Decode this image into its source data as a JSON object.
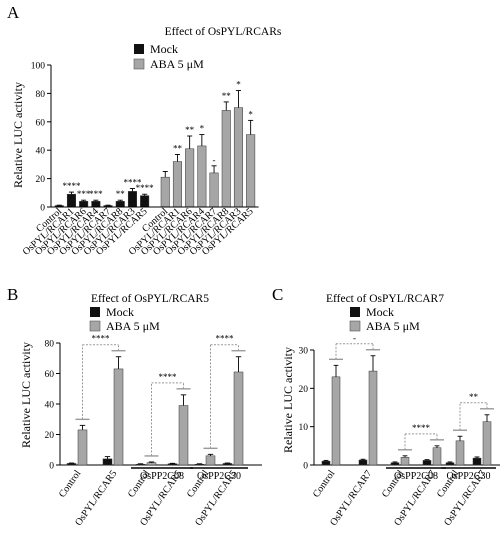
{
  "panels": [
    {
      "letter": "A",
      "title": "Effect of OsPYL/RCARs",
      "chart_data": {
        "type": "bar",
        "ylabel": "Relative LUC activity",
        "ylim": [
          0,
          100
        ],
        "yticks": [
          0,
          20,
          40,
          60,
          80,
          100
        ],
        "legend": [
          "Mock",
          "ABA 5 μM"
        ],
        "legend_placement": "top-left",
        "series": [
          {
            "name": "Mock",
            "color": "#111111",
            "categories": [
              "Control",
              "OsPYL/RCAR1",
              "OsPYL/RCAR6",
              "OsPYL/RCAR4",
              "OsPYL/RCAR7",
              "OsPYL/RCAR8",
              "OsPYL/RCAR3",
              "OsPYL/RCAR5"
            ],
            "values": [
              1,
              9,
              4,
              4,
              1,
              4,
              11,
              8
            ],
            "errors": [
              0.3,
              1.5,
              0.8,
              0.8,
              0.3,
              0.8,
              2,
              1
            ],
            "significance": [
              "",
              "****",
              "***",
              "***",
              "",
              "**",
              "****",
              "****"
            ]
          },
          {
            "name": "ABA 5 μM",
            "color": "#a6a6a6",
            "categories": [
              "Control",
              "OsPYL/RCAR1",
              "OsPYL/RCAR6",
              "OsPYL/RCAR4",
              "OsPYL/RCAR7",
              "OsPYL/RCAR8",
              "OsPYL/RCAR3",
              "OsPYL/RCAR5"
            ],
            "values": [
              21,
              32,
              41,
              43,
              24,
              68,
              70,
              51
            ],
            "errors": [
              4,
              5,
              9,
              8,
              5,
              6,
              12,
              10
            ],
            "significance": [
              "",
              "**",
              "**",
              "*",
              "-",
              "**",
              "*",
              "*"
            ]
          }
        ]
      }
    },
    {
      "letter": "B",
      "title": "Effect of  OsPYL/RCAR5",
      "chart_data": {
        "type": "bar",
        "ylabel": "Relative LUC activity",
        "ylim": [
          0,
          80
        ],
        "yticks": [
          0,
          20,
          40,
          60,
          80
        ],
        "legend": [
          "Mock",
          "ABA 5 μM"
        ],
        "legend_placement": "top-left",
        "categories": [
          "Control",
          "OsPYL/RCAR5",
          "Control",
          "OsPYL/RCAR5",
          "Control",
          "OsPYL/RCAR5"
        ],
        "groups": [
          "",
          "OsPP2C08",
          "OsPP2C30"
        ],
        "series": [
          {
            "name": "Mock",
            "color": "#111111",
            "values": [
              1,
              4,
              0.5,
              0.8,
              0.5,
              1
            ],
            "errors": [
              0.3,
              1.5,
              0.3,
              0.3,
              0.3,
              0.3
            ]
          },
          {
            "name": "ABA 5 μM",
            "color": "#a6a6a6",
            "values": [
              23,
              63,
              1.5,
              39,
              6,
              61
            ],
            "errors": [
              3,
              8,
              0.5,
              7,
              1,
              10
            ]
          }
        ],
        "significance": [
          "****",
          "****",
          "****"
        ]
      }
    },
    {
      "letter": "C",
      "title": "Effect of OsPYL/RCAR7",
      "chart_data": {
        "type": "bar",
        "ylabel": "Relative LUC activity",
        "ylim": [
          0,
          30
        ],
        "yticks": [
          0,
          10,
          20,
          30
        ],
        "legend": [
          "Mock",
          "ABA 5 μM"
        ],
        "legend_placement": "top-left",
        "categories": [
          "Control",
          "OsPYL/RCAR7",
          "Control",
          "OsPYL/RCAR7",
          "Control",
          "OsPYL/RCAR7"
        ],
        "groups": [
          "",
          "OsPP2C08",
          "OsPP2C30"
        ],
        "series": [
          {
            "name": "Mock",
            "color": "#111111",
            "values": [
              1,
              1.3,
              0.6,
              1.2,
              0.6,
              1.8
            ],
            "errors": [
              0.2,
              0.2,
              0.2,
              0.2,
              0.2,
              0.3
            ]
          },
          {
            "name": "ABA 5 μM",
            "color": "#a6a6a6",
            "values": [
              23,
              24.5,
              2,
              4.5,
              6.3,
              11.3
            ],
            "errors": [
              3,
              4,
              0.4,
              0.5,
              1.2,
              1.8
            ]
          }
        ],
        "significance": [
          "-",
          "****",
          "**"
        ]
      }
    }
  ]
}
